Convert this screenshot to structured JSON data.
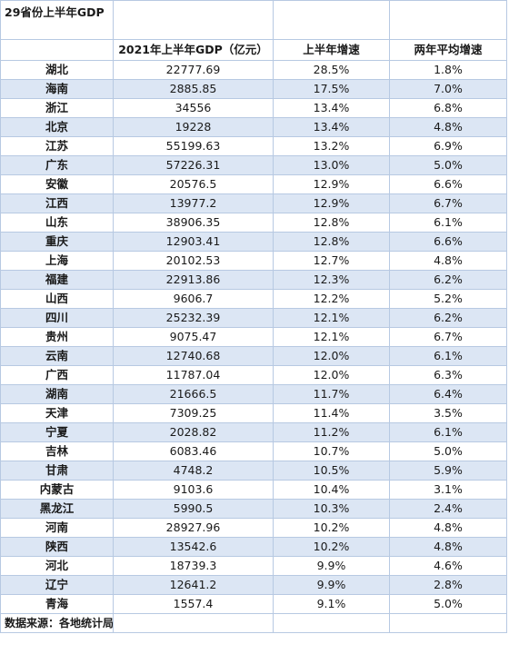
{
  "sheet_title": "29省份上半年GDP",
  "headers": [
    "",
    "2021年上半年GDP（亿元）",
    "上半年增速",
    "两年平均增速"
  ],
  "rows": [
    {
      "province": "湖北",
      "gdp": "22777.69",
      "growth": "28.5%",
      "avg": "1.8%"
    },
    {
      "province": "海南",
      "gdp": "2885.85",
      "growth": "17.5%",
      "avg": "7.0%"
    },
    {
      "province": "浙江",
      "gdp": "34556",
      "growth": "13.4%",
      "avg": "6.8%"
    },
    {
      "province": "北京",
      "gdp": "19228",
      "growth": "13.4%",
      "avg": "4.8%"
    },
    {
      "province": "江苏",
      "gdp": "55199.63",
      "growth": "13.2%",
      "avg": "6.9%"
    },
    {
      "province": "广东",
      "gdp": "57226.31",
      "growth": "13.0%",
      "avg": "5.0%"
    },
    {
      "province": "安徽",
      "gdp": "20576.5",
      "growth": "12.9%",
      "avg": "6.6%"
    },
    {
      "province": "江西",
      "gdp": "13977.2",
      "growth": "12.9%",
      "avg": "6.7%"
    },
    {
      "province": "山东",
      "gdp": "38906.35",
      "growth": "12.8%",
      "avg": "6.1%"
    },
    {
      "province": "重庆",
      "gdp": "12903.41",
      "growth": "12.8%",
      "avg": "6.6%"
    },
    {
      "province": "上海",
      "gdp": "20102.53",
      "growth": "12.7%",
      "avg": "4.8%"
    },
    {
      "province": "福建",
      "gdp": "22913.86",
      "growth": "12.3%",
      "avg": "6.2%"
    },
    {
      "province": "山西",
      "gdp": "9606.7",
      "growth": "12.2%",
      "avg": "5.2%"
    },
    {
      "province": "四川",
      "gdp": "25232.39",
      "growth": "12.1%",
      "avg": "6.2%"
    },
    {
      "province": "贵州",
      "gdp": "9075.47",
      "growth": "12.1%",
      "avg": "6.7%"
    },
    {
      "province": "云南",
      "gdp": "12740.68",
      "growth": "12.0%",
      "avg": "6.1%"
    },
    {
      "province": "广西",
      "gdp": "11787.04",
      "growth": "12.0%",
      "avg": "6.3%"
    },
    {
      "province": "湖南",
      "gdp": "21666.5",
      "growth": "11.7%",
      "avg": "6.4%"
    },
    {
      "province": "天津",
      "gdp": "7309.25",
      "growth": "11.4%",
      "avg": "3.5%"
    },
    {
      "province": "宁夏",
      "gdp": "2028.82",
      "growth": "11.2%",
      "avg": "6.1%"
    },
    {
      "province": "吉林",
      "gdp": "6083.46",
      "growth": "10.7%",
      "avg": "5.0%"
    },
    {
      "province": "甘肃",
      "gdp": "4748.2",
      "growth": "10.5%",
      "avg": "5.9%"
    },
    {
      "province": "内蒙古",
      "gdp": "9103.6",
      "growth": "10.4%",
      "avg": "3.1%"
    },
    {
      "province": "黑龙江",
      "gdp": "5990.5",
      "growth": "10.3%",
      "avg": "2.4%"
    },
    {
      "province": "河南",
      "gdp": "28927.96",
      "growth": "10.2%",
      "avg": "4.8%"
    },
    {
      "province": "陕西",
      "gdp": "13542.6",
      "growth": "10.2%",
      "avg": "4.8%"
    },
    {
      "province": "河北",
      "gdp": "18739.3",
      "growth": "9.9%",
      "avg": "4.6%"
    },
    {
      "province": "辽宁",
      "gdp": "12641.2",
      "growth": "9.9%",
      "avg": "2.8%"
    },
    {
      "province": "青海",
      "gdp": "1557.4",
      "growth": "9.1%",
      "avg": "5.0%"
    }
  ],
  "source_note": "数据来源：各地统计局",
  "colors": {
    "alt_row": "#dce6f4",
    "grid": "#b7c9e2"
  }
}
